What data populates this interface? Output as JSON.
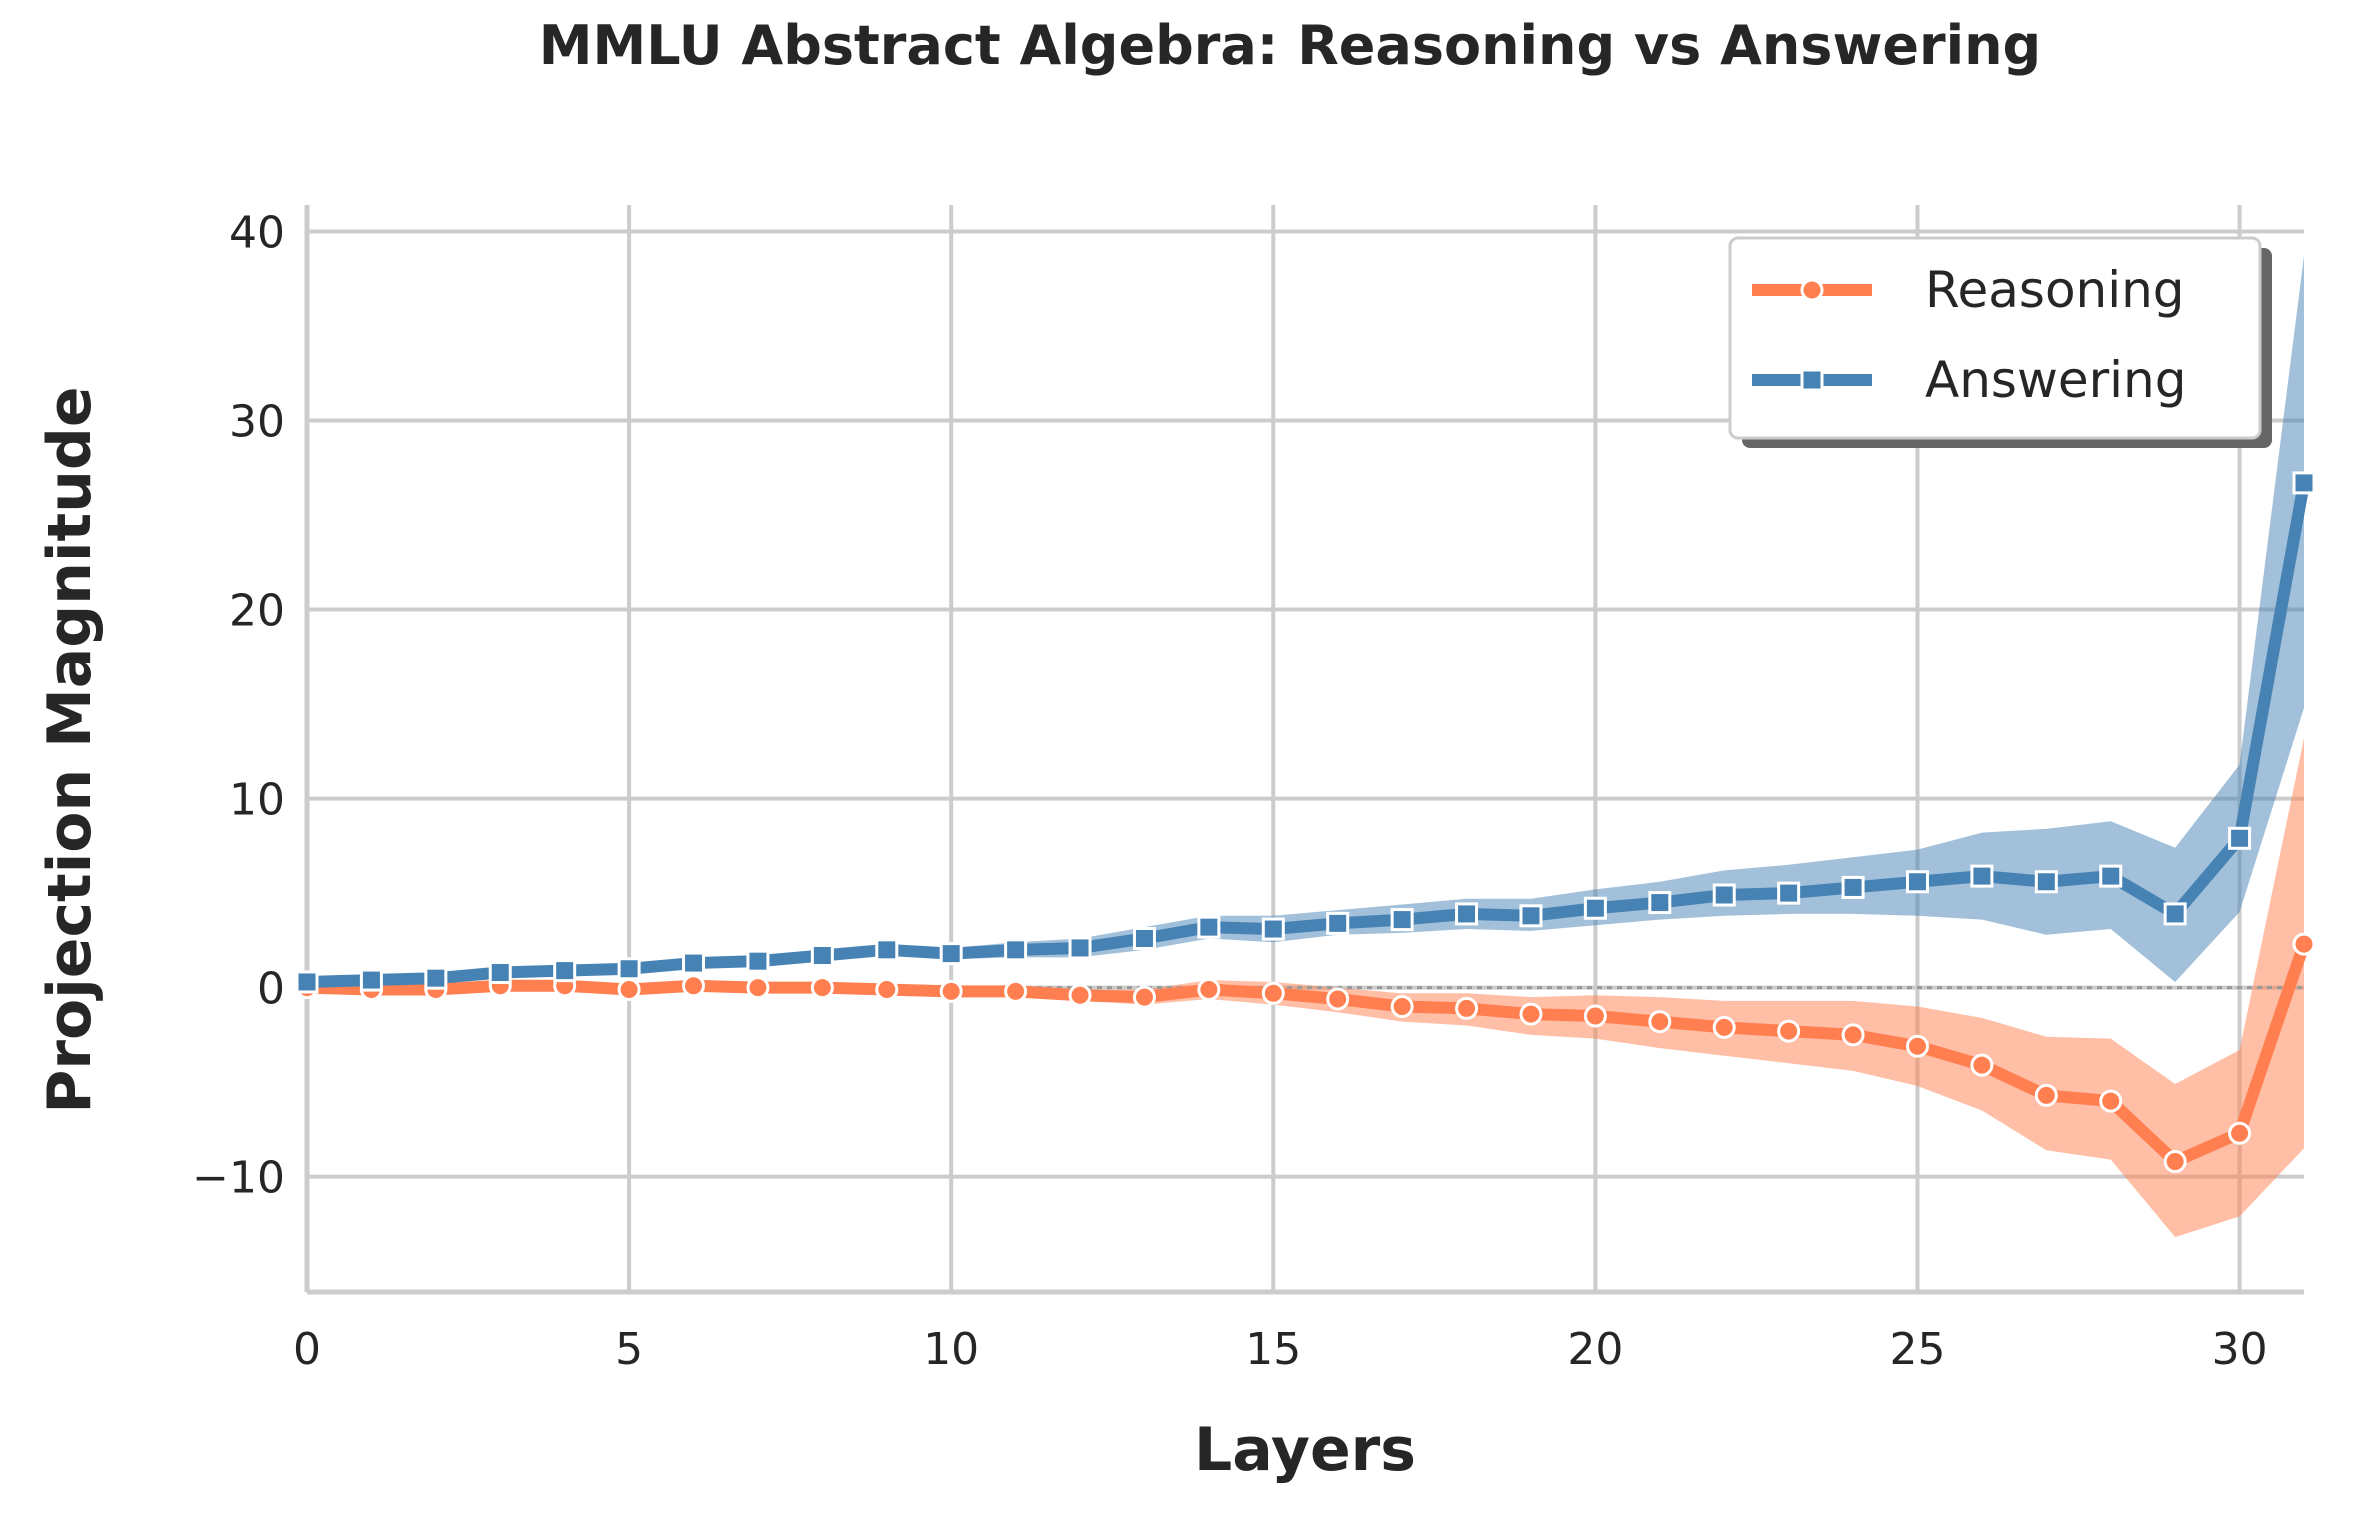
{
  "chart_data": {
    "type": "line",
    "title": "MMLU Abstract Algebra: Reasoning vs Answering",
    "xlabel": "Layers",
    "ylabel": "Projection Magnitude",
    "xlim": [
      0,
      31
    ],
    "ylim": [
      -16.1,
      41.4
    ],
    "xticks": [
      0,
      5,
      10,
      15,
      20,
      25,
      30
    ],
    "yticks": [
      -10,
      0,
      10,
      20,
      30,
      40
    ],
    "ytick_labels": [
      "−10",
      "0",
      "10",
      "20",
      "30",
      "40"
    ],
    "grid": true,
    "legend_position": "top-right",
    "reference_line": 0,
    "x": [
      0,
      1,
      2,
      3,
      4,
      5,
      6,
      7,
      8,
      9,
      10,
      11,
      12,
      13,
      14,
      15,
      16,
      17,
      18,
      19,
      20,
      21,
      22,
      23,
      24,
      25,
      26,
      27,
      28,
      29,
      30,
      31
    ],
    "series": [
      {
        "name": "Reasoning",
        "color": "#ff7f50",
        "marker": "circle",
        "values": [
          0,
          -0.1,
          -0.1,
          0.1,
          0.1,
          -0.1,
          0.1,
          0,
          0,
          -0.1,
          -0.2,
          -0.2,
          -0.4,
          -0.5,
          -0.1,
          -0.3,
          -0.6,
          -1.0,
          -1.1,
          -1.4,
          -1.5,
          -1.8,
          -2.1,
          -2.3,
          -2.5,
          -3.1,
          -4.1,
          -5.7,
          -6.0,
          -9.2,
          -7.7,
          2.3
        ],
        "lower": [
          -0.2,
          -0.3,
          -0.3,
          -0.1,
          -0.1,
          -0.3,
          -0.1,
          -0.2,
          -0.2,
          -0.3,
          -0.4,
          -0.4,
          -0.7,
          -0.9,
          -0.6,
          -0.9,
          -1.3,
          -1.8,
          -2.0,
          -2.5,
          -2.7,
          -3.2,
          -3.6,
          -4.0,
          -4.4,
          -5.2,
          -6.5,
          -8.6,
          -9.1,
          -13.2,
          -12.1,
          -8.5
        ],
        "upper": [
          0.2,
          0.1,
          0.1,
          0.3,
          0.3,
          0.1,
          0.3,
          0.2,
          0.2,
          0.1,
          0,
          0,
          -0.1,
          -0.1,
          0.4,
          0.3,
          0,
          -0.3,
          -0.3,
          -0.5,
          -0.4,
          -0.5,
          -0.7,
          -0.7,
          -0.7,
          -1.0,
          -1.6,
          -2.6,
          -2.7,
          -5.1,
          -3.3,
          13.2
        ]
      },
      {
        "name": "Answering",
        "color": "#4682b4",
        "marker": "square",
        "values": [
          0.3,
          0.4,
          0.5,
          0.8,
          0.9,
          1.0,
          1.3,
          1.4,
          1.7,
          2.0,
          1.8,
          2.0,
          2.1,
          2.6,
          3.2,
          3.1,
          3.4,
          3.6,
          3.9,
          3.8,
          4.2,
          4.5,
          4.9,
          5.0,
          5.3,
          5.6,
          5.9,
          5.6,
          5.9,
          3.9,
          7.9,
          26.7
        ],
        "lower": [
          0.2,
          0.3,
          0.4,
          0.7,
          0.8,
          0.9,
          1.1,
          1.2,
          1.5,
          1.8,
          1.5,
          1.6,
          1.6,
          2.0,
          2.6,
          2.4,
          2.8,
          2.9,
          3.1,
          3.0,
          3.3,
          3.6,
          3.8,
          3.9,
          3.9,
          3.8,
          3.6,
          2.8,
          3.1,
          0.3,
          4.0,
          14.8
        ],
        "upper": [
          0.4,
          0.5,
          0.6,
          0.9,
          1.0,
          1.1,
          1.5,
          1.6,
          1.9,
          2.2,
          2.1,
          2.4,
          2.6,
          3.2,
          3.8,
          3.8,
          4.1,
          4.4,
          4.7,
          4.7,
          5.2,
          5.6,
          6.2,
          6.5,
          6.9,
          7.3,
          8.2,
          8.4,
          8.8,
          7.4,
          11.8,
          38.7
        ]
      }
    ]
  }
}
